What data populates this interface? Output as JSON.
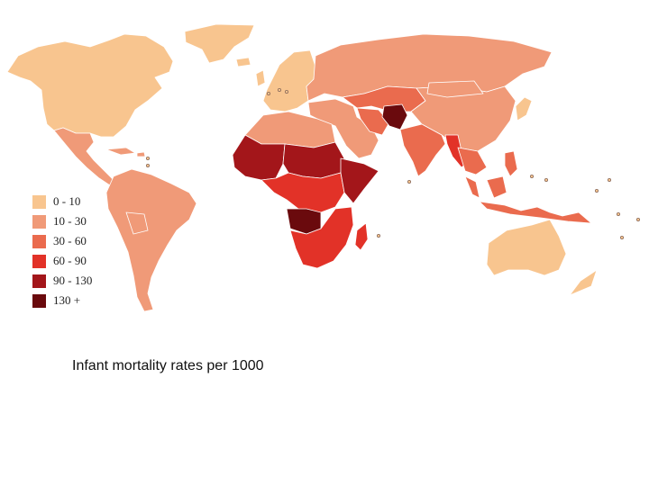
{
  "caption": "Infant mortality rates per 1000",
  "legend": {
    "items": [
      {
        "label": "0 - 10",
        "color": "#f8c58f"
      },
      {
        "label": "10 - 30",
        "color": "#f09a78"
      },
      {
        "label": "30 - 60",
        "color": "#ea6b4e"
      },
      {
        "label": "60 - 90",
        "color": "#e23228"
      },
      {
        "label": "90 - 130",
        "color": "#a3161a"
      },
      {
        "label": "130 +",
        "color": "#6a0a0d"
      }
    ]
  },
  "regions": [
    {
      "name": "North America",
      "category": 0
    },
    {
      "name": "Greenland",
      "category": 0
    },
    {
      "name": "Mexico and Central America",
      "category": 1
    },
    {
      "name": "South America",
      "category": 1
    },
    {
      "name": "Northern Europe",
      "category": 0
    },
    {
      "name": "Eastern Europe and Russia",
      "category": 1
    },
    {
      "name": "Central Asia",
      "category": 2
    },
    {
      "name": "North Africa",
      "category": 1
    },
    {
      "name": "West Africa",
      "category": 4
    },
    {
      "name": "Sahel",
      "category": 4
    },
    {
      "name": "Central Africa",
      "category": 3
    },
    {
      "name": "Congo Basin",
      "category": 5
    },
    {
      "name": "Horn of Africa",
      "category": 4
    },
    {
      "name": "Southern Africa",
      "category": 3
    },
    {
      "name": "Madagascar",
      "category": 3
    },
    {
      "name": "Middle East",
      "category": 1
    },
    {
      "name": "Afghanistan",
      "category": 5
    },
    {
      "name": "South Asia",
      "category": 2
    },
    {
      "name": "Myanmar",
      "category": 3
    },
    {
      "name": "China",
      "category": 1
    },
    {
      "name": "Japan",
      "category": 0
    },
    {
      "name": "Southeast Asia",
      "category": 2
    },
    {
      "name": "Indonesia",
      "category": 2
    },
    {
      "name": "Australia",
      "category": 0
    },
    {
      "name": "New Zealand",
      "category": 0
    }
  ]
}
